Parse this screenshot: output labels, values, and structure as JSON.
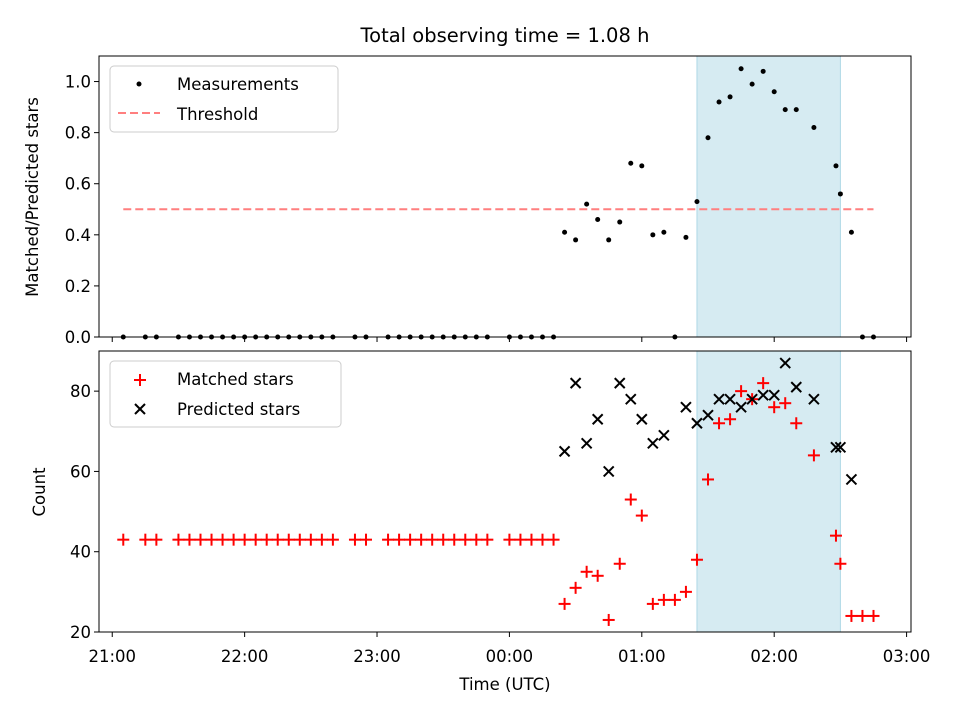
{
  "chart_data": [
    {
      "type": "scatter",
      "title": "Total observing time = 1.08 h",
      "xlabel": "",
      "ylabel": "Matched/Predicted stars",
      "xlim": [
        "20:54",
        "03:02"
      ],
      "ylim": [
        0,
        1.1
      ],
      "yticks": [
        "0.0",
        "0.2",
        "0.4",
        "0.6",
        "0.8",
        "1.0"
      ],
      "highlight_span": {
        "from": "01:25",
        "to": "02:30",
        "color": "#add8e6"
      },
      "threshold": {
        "name": "Threshold",
        "y": 0.5,
        "x_from": "21:05",
        "x_to": "02:45",
        "color": "#ff7f7f",
        "style": "dashed"
      },
      "legend": {
        "placement": "top-left",
        "entries": [
          "Measurements",
          "Threshold"
        ]
      },
      "series": [
        {
          "name": "Measurements",
          "color": "#000000",
          "marker": "dot",
          "points": [
            [
              "21:05",
              0.0
            ],
            [
              "21:15",
              0.0
            ],
            [
              "21:20",
              0.0
            ],
            [
              "21:30",
              0.0
            ],
            [
              "21:35",
              0.0
            ],
            [
              "21:40",
              0.0
            ],
            [
              "21:45",
              0.0
            ],
            [
              "21:50",
              0.0
            ],
            [
              "21:55",
              0.0
            ],
            [
              "22:00",
              0.0
            ],
            [
              "22:05",
              0.0
            ],
            [
              "22:10",
              0.0
            ],
            [
              "22:15",
              0.0
            ],
            [
              "22:20",
              0.0
            ],
            [
              "22:25",
              0.0
            ],
            [
              "22:30",
              0.0
            ],
            [
              "22:35",
              0.0
            ],
            [
              "22:40",
              0.0
            ],
            [
              "22:50",
              0.0
            ],
            [
              "22:55",
              0.0
            ],
            [
              "23:05",
              0.0
            ],
            [
              "23:10",
              0.0
            ],
            [
              "23:15",
              0.0
            ],
            [
              "23:20",
              0.0
            ],
            [
              "23:25",
              0.0
            ],
            [
              "23:30",
              0.0
            ],
            [
              "23:35",
              0.0
            ],
            [
              "23:40",
              0.0
            ],
            [
              "23:45",
              0.0
            ],
            [
              "23:50",
              0.0
            ],
            [
              "00:00",
              0.0
            ],
            [
              "00:05",
              0.0
            ],
            [
              "00:10",
              0.0
            ],
            [
              "00:15",
              0.0
            ],
            [
              "00:20",
              0.0
            ],
            [
              "00:25",
              0.41
            ],
            [
              "00:30",
              0.38
            ],
            [
              "00:35",
              0.52
            ],
            [
              "00:40",
              0.46
            ],
            [
              "00:45",
              0.38
            ],
            [
              "00:50",
              0.45
            ],
            [
              "00:55",
              0.68
            ],
            [
              "01:00",
              0.67
            ],
            [
              "01:05",
              0.4
            ],
            [
              "01:10",
              0.41
            ],
            [
              "01:15",
              0.0
            ],
            [
              "01:20",
              0.39
            ],
            [
              "01:25",
              0.53
            ],
            [
              "01:30",
              0.78
            ],
            [
              "01:35",
              0.92
            ],
            [
              "01:40",
              0.94
            ],
            [
              "01:45",
              1.05
            ],
            [
              "01:50",
              0.99
            ],
            [
              "01:55",
              1.04
            ],
            [
              "02:00",
              0.96
            ],
            [
              "02:05",
              0.89
            ],
            [
              "02:10",
              0.89
            ],
            [
              "02:18",
              0.82
            ],
            [
              "02:28",
              0.67
            ],
            [
              "02:30",
              0.56
            ],
            [
              "02:35",
              0.41
            ],
            [
              "02:40",
              0.0
            ],
            [
              "02:45",
              0.0
            ]
          ]
        }
      ]
    },
    {
      "type": "scatter",
      "title": "",
      "xlabel": "Time (UTC)",
      "ylabel": "Count",
      "xlim": [
        "20:54",
        "03:02"
      ],
      "ylim": [
        20,
        90
      ],
      "yticks": [
        "20",
        "40",
        "60",
        "80"
      ],
      "xticks": [
        "21:00",
        "22:00",
        "23:00",
        "00:00",
        "01:00",
        "02:00",
        "03:00"
      ],
      "highlight_span": {
        "from": "01:25",
        "to": "02:30",
        "color": "#add8e6"
      },
      "legend": {
        "placement": "top-left",
        "entries": [
          "Matched stars",
          "Predicted stars"
        ]
      },
      "series": [
        {
          "name": "Matched stars",
          "color": "#ff0000",
          "marker": "plus",
          "points": [
            [
              "21:05",
              43
            ],
            [
              "21:15",
              43
            ],
            [
              "21:20",
              43
            ],
            [
              "21:30",
              43
            ],
            [
              "21:35",
              43
            ],
            [
              "21:40",
              43
            ],
            [
              "21:45",
              43
            ],
            [
              "21:50",
              43
            ],
            [
              "21:55",
              43
            ],
            [
              "22:00",
              43
            ],
            [
              "22:05",
              43
            ],
            [
              "22:10",
              43
            ],
            [
              "22:15",
              43
            ],
            [
              "22:20",
              43
            ],
            [
              "22:25",
              43
            ],
            [
              "22:30",
              43
            ],
            [
              "22:35",
              43
            ],
            [
              "22:40",
              43
            ],
            [
              "22:50",
              43
            ],
            [
              "22:55",
              43
            ],
            [
              "23:05",
              43
            ],
            [
              "23:10",
              43
            ],
            [
              "23:15",
              43
            ],
            [
              "23:20",
              43
            ],
            [
              "23:25",
              43
            ],
            [
              "23:30",
              43
            ],
            [
              "23:35",
              43
            ],
            [
              "23:40",
              43
            ],
            [
              "23:45",
              43
            ],
            [
              "23:50",
              43
            ],
            [
              "00:00",
              43
            ],
            [
              "00:05",
              43
            ],
            [
              "00:10",
              43
            ],
            [
              "00:15",
              43
            ],
            [
              "00:20",
              43
            ],
            [
              "00:25",
              27
            ],
            [
              "00:30",
              31
            ],
            [
              "00:35",
              35
            ],
            [
              "00:40",
              34
            ],
            [
              "00:45",
              23
            ],
            [
              "00:50",
              37
            ],
            [
              "00:55",
              53
            ],
            [
              "01:00",
              49
            ],
            [
              "01:05",
              27
            ],
            [
              "01:10",
              28
            ],
            [
              "01:15",
              28
            ],
            [
              "01:20",
              30
            ],
            [
              "01:25",
              38
            ],
            [
              "01:30",
              58
            ],
            [
              "01:35",
              72
            ],
            [
              "01:40",
              73
            ],
            [
              "01:45",
              80
            ],
            [
              "01:50",
              78
            ],
            [
              "01:55",
              82
            ],
            [
              "02:00",
              76
            ],
            [
              "02:05",
              77
            ],
            [
              "02:10",
              72
            ],
            [
              "02:18",
              64
            ],
            [
              "02:28",
              44
            ],
            [
              "02:30",
              37
            ],
            [
              "02:35",
              24
            ],
            [
              "02:40",
              24
            ],
            [
              "02:45",
              24
            ]
          ]
        },
        {
          "name": "Predicted stars",
          "color": "#000000",
          "marker": "x",
          "points": [
            [
              "00:25",
              65
            ],
            [
              "00:30",
              82
            ],
            [
              "00:35",
              67
            ],
            [
              "00:40",
              73
            ],
            [
              "00:45",
              60
            ],
            [
              "00:50",
              82
            ],
            [
              "00:55",
              78
            ],
            [
              "01:00",
              73
            ],
            [
              "01:05",
              67
            ],
            [
              "01:10",
              69
            ],
            [
              "01:20",
              76
            ],
            [
              "01:25",
              72
            ],
            [
              "01:30",
              74
            ],
            [
              "01:35",
              78
            ],
            [
              "01:40",
              78
            ],
            [
              "01:45",
              76
            ],
            [
              "01:50",
              78
            ],
            [
              "01:55",
              79
            ],
            [
              "02:00",
              79
            ],
            [
              "02:05",
              87
            ],
            [
              "02:10",
              81
            ],
            [
              "02:18",
              78
            ],
            [
              "02:28",
              66
            ],
            [
              "02:30",
              66
            ],
            [
              "02:35",
              58
            ]
          ]
        }
      ]
    }
  ]
}
